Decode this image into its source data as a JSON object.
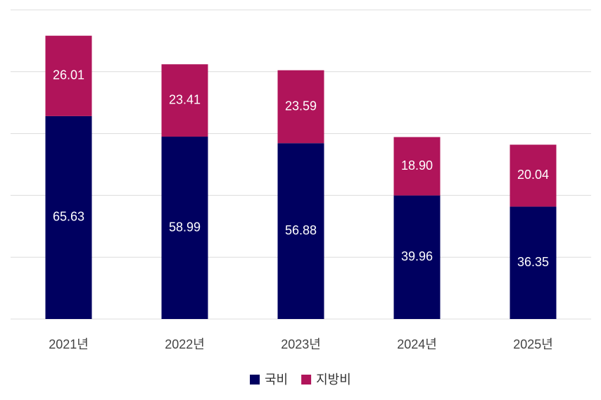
{
  "chart_data": {
    "type": "stacked_bar",
    "categories": [
      "2021년",
      "2022년",
      "2023년",
      "2024년",
      "2025년"
    ],
    "series": [
      {
        "name": "국비",
        "color": "#000060",
        "values": [
          65.63,
          58.99,
          56.88,
          39.96,
          36.35
        ]
      },
      {
        "name": "지방비",
        "color": "#b0145a",
        "values": [
          26.01,
          23.41,
          23.59,
          18.9,
          20.04
        ],
        "value_labels": [
          "26.01",
          "23.41",
          "23.59",
          "18.90",
          "20.04"
        ]
      }
    ],
    "ylim": [
      0,
      100
    ],
    "yticks": [
      0,
      20,
      40,
      60,
      80,
      100
    ],
    "grid": true,
    "legend": "bottom"
  }
}
